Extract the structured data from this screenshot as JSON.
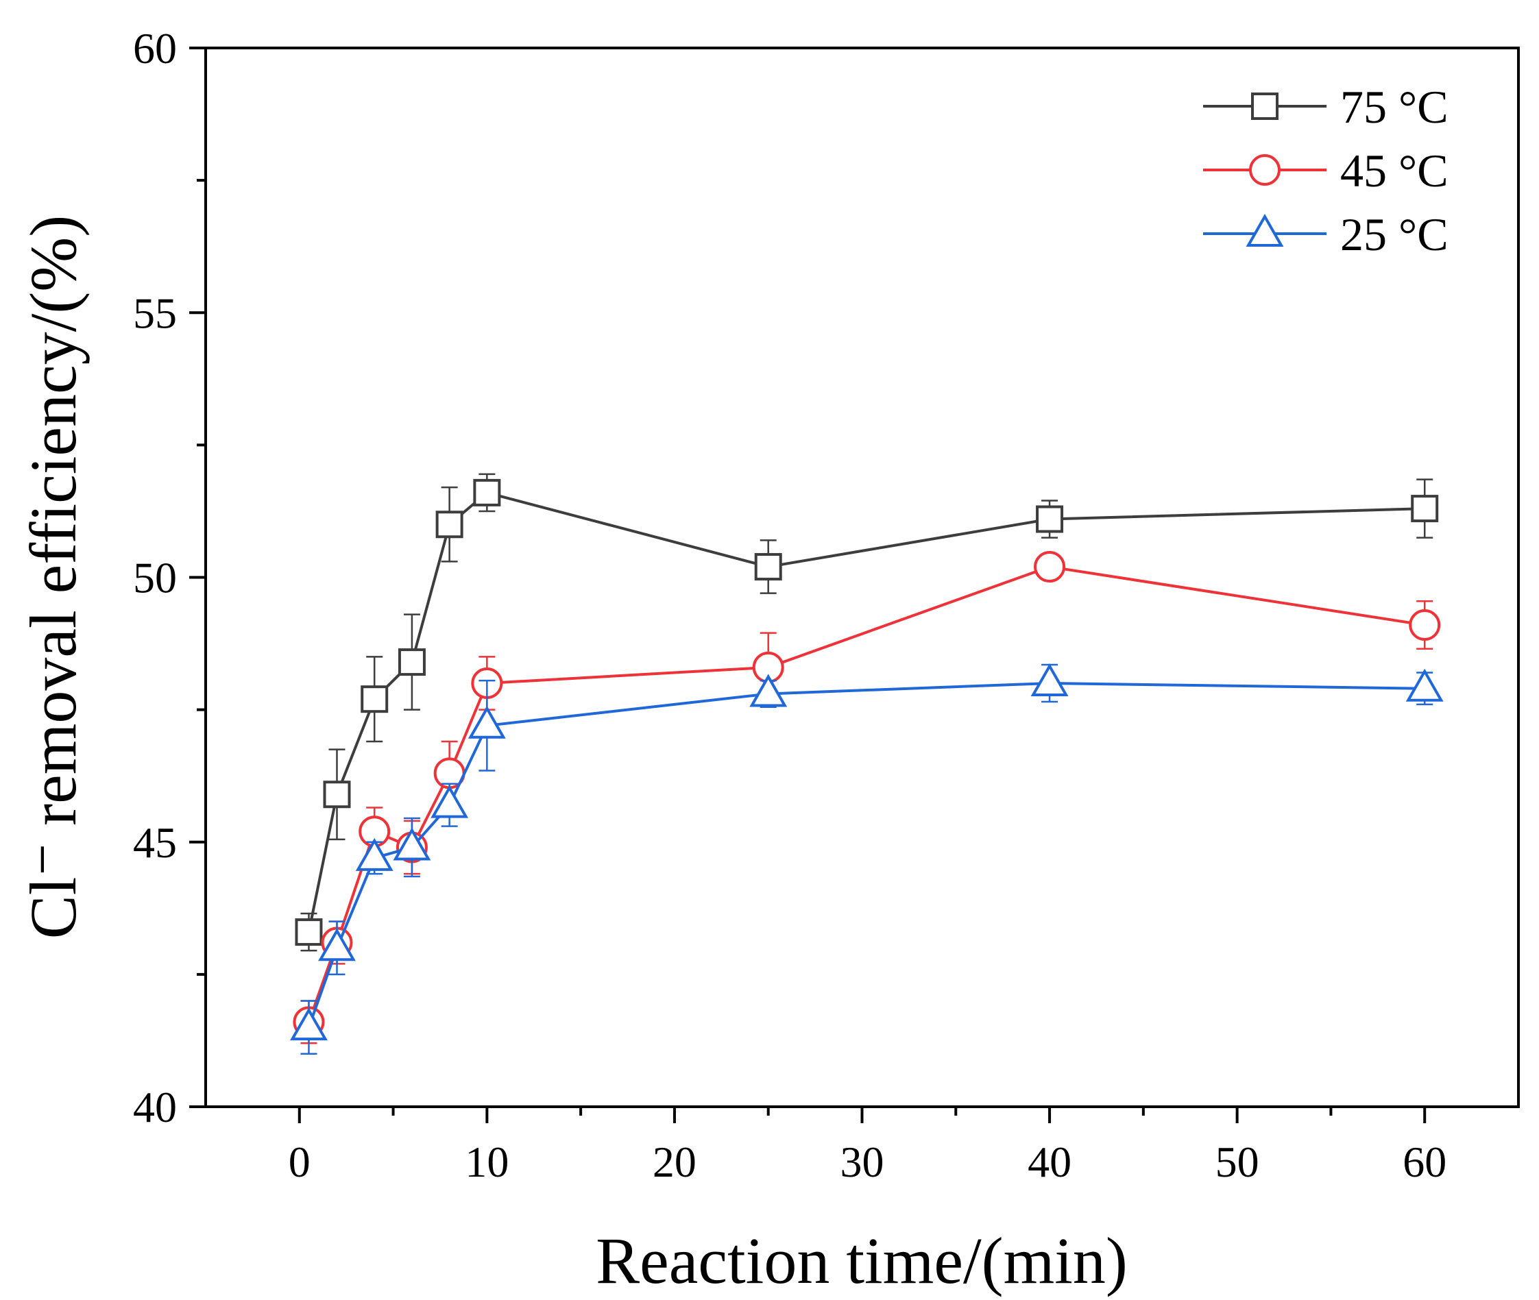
{
  "chart_data": {
    "type": "line",
    "title": "",
    "xlabel": "Reaction time/(min)",
    "ylabel": "Cl⁻ removal efficiency/(%)",
    "xlim": [
      -5,
      65
    ],
    "ylim": [
      40,
      60
    ],
    "xticks": [
      0,
      10,
      20,
      30,
      40,
      50,
      60
    ],
    "xtick_labels": [
      "0",
      "10",
      "20",
      "30",
      "40",
      "50",
      "60"
    ],
    "yticks": [
      40,
      45,
      50,
      55,
      60
    ],
    "ytick_labels": [
      "40",
      "45",
      "50",
      "55",
      "60"
    ],
    "grid": false,
    "legend_position": "top-right",
    "x": [
      0.5,
      2,
      4,
      6,
      8,
      10,
      25,
      40,
      60
    ],
    "series": [
      {
        "name": "75 °C",
        "color": "#3d3d3d",
        "marker": "square",
        "values": [
          43.3,
          45.9,
          47.7,
          48.4,
          51.0,
          51.6,
          50.2,
          51.1,
          51.3
        ],
        "errors": [
          0.35,
          0.85,
          0.8,
          0.9,
          0.7,
          0.35,
          0.5,
          0.35,
          0.55
        ]
      },
      {
        "name": "45 °C",
        "color": "#ee3338",
        "marker": "circle",
        "values": [
          41.6,
          43.1,
          45.2,
          44.9,
          46.3,
          48.0,
          48.3,
          50.2,
          49.1
        ],
        "errors": [
          0.4,
          0.4,
          0.45,
          0.5,
          0.6,
          0.5,
          0.65,
          0.2,
          0.45
        ]
      },
      {
        "name": "25 °C",
        "color": "#2068d8",
        "marker": "triangle",
        "values": [
          41.5,
          43.0,
          44.7,
          44.9,
          45.7,
          47.2,
          47.8,
          48.0,
          47.9
        ],
        "errors": [
          0.5,
          0.5,
          0.3,
          0.55,
          0.4,
          0.85,
          0.25,
          0.35,
          0.3
        ]
      }
    ]
  }
}
